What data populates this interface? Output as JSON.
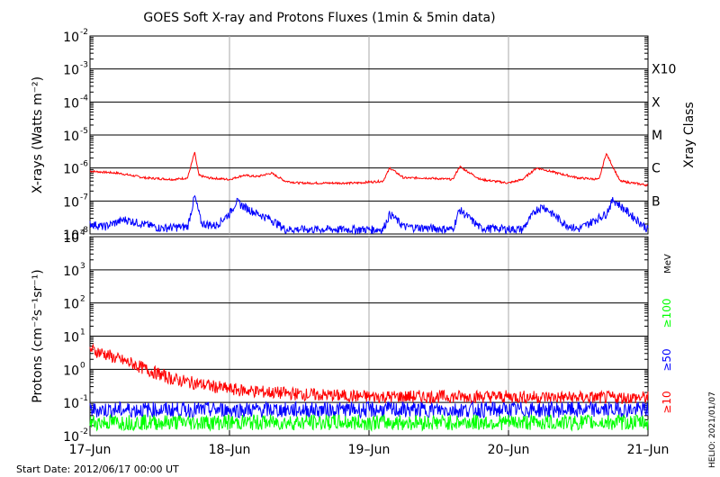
{
  "title": "GOES Soft X-ray and Protons Fluxes   (1min & 5min data)",
  "start_date": "Start Date: 2012/06/17 00:00 UT",
  "credit": "HELIO: 2021/01/07",
  "chart_data": [
    {
      "type": "line",
      "panel": "xray",
      "ylabel": "X-rays (Watts m⁻²)",
      "yscale": "log",
      "ylim": [
        1e-08,
        0.01
      ],
      "yticks": [
        {
          "exp": -2,
          "label": "10",
          "sup": "-2"
        },
        {
          "exp": -3,
          "label": "10",
          "sup": "-3"
        },
        {
          "exp": -4,
          "label": "10",
          "sup": "-4"
        },
        {
          "exp": -5,
          "label": "10",
          "sup": "-5"
        },
        {
          "exp": -6,
          "label": "10",
          "sup": "-6"
        },
        {
          "exp": -7,
          "label": "10",
          "sup": "-7"
        },
        {
          "exp": -8,
          "label": "10",
          "sup": "-8"
        }
      ],
      "right_axis_title": "Xray Class",
      "class_labels": [
        {
          "exp": -3,
          "label": "X10"
        },
        {
          "exp": -4,
          "label": "X"
        },
        {
          "exp": -5,
          "label": "M"
        },
        {
          "exp": -6,
          "label": "C"
        },
        {
          "exp": -7,
          "label": "B"
        }
      ],
      "series": [
        {
          "color": "#ff0000",
          "x_days": [
            0.0,
            0.2,
            0.4,
            0.6,
            0.7,
            0.75,
            0.78,
            0.85,
            1.0,
            1.1,
            1.2,
            1.3,
            1.4,
            1.5,
            1.7,
            1.9,
            2.1,
            2.15,
            2.25,
            2.4,
            2.6,
            2.65,
            2.8,
            3.0,
            3.1,
            3.2,
            3.25,
            3.35,
            3.5,
            3.65,
            3.7,
            3.8,
            4.0
          ],
          "values": [
            8e-07,
            7e-07,
            5e-07,
            4.5e-07,
            5e-07,
            3e-06,
            6e-07,
            5e-07,
            4.5e-07,
            6e-07,
            5.5e-07,
            7e-07,
            4e-07,
            3.5e-07,
            3.5e-07,
            3.5e-07,
            4e-07,
            1e-06,
            5e-07,
            5e-07,
            4.5e-07,
            1.1e-06,
            4.5e-07,
            3.5e-07,
            4.5e-07,
            1e-06,
            9e-07,
            7e-07,
            5e-07,
            4.5e-07,
            2.8e-06,
            4e-07,
            3e-07
          ]
        },
        {
          "color": "#0000ff",
          "x_days": [
            0.0,
            0.1,
            0.25,
            0.5,
            0.7,
            0.75,
            0.8,
            0.9,
            1.0,
            1.05,
            1.1,
            1.2,
            1.3,
            1.4,
            1.7,
            2.1,
            2.15,
            2.25,
            2.6,
            2.65,
            2.8,
            3.1,
            3.2,
            3.25,
            3.4,
            3.5,
            3.7,
            3.75,
            4.0
          ],
          "values": [
            1.5e-08,
            1.2e-08,
            2e-08,
            1.1e-08,
            1.2e-08,
            1e-07,
            1.5e-08,
            1.3e-08,
            3e-08,
            7e-08,
            5e-08,
            3e-08,
            2e-08,
            1e-08,
            1e-08,
            1e-08,
            3e-08,
            1.2e-08,
            1e-08,
            4e-08,
            1.1e-08,
            1e-08,
            4e-08,
            5e-08,
            1.5e-08,
            1e-08,
            3e-08,
            8e-08,
            1e-08
          ]
        }
      ]
    },
    {
      "type": "line",
      "panel": "protons",
      "ylabel": "Protons (cm⁻²s⁻¹sr⁻¹)",
      "yscale": "log",
      "ylim": [
        0.01,
        10000
      ],
      "yticks": [
        {
          "exp": 4,
          "label": "10",
          "sup": "4"
        },
        {
          "exp": 3,
          "label": "10",
          "sup": "3"
        },
        {
          "exp": 2,
          "label": "10",
          "sup": "2"
        },
        {
          "exp": 1,
          "label": "10",
          "sup": "1"
        },
        {
          "exp": 0,
          "label": "10",
          "sup": "0"
        },
        {
          "exp": -1,
          "label": "10",
          "sup": "-1"
        },
        {
          "exp": -2,
          "label": "10",
          "sup": "-2"
        }
      ],
      "threshold": 10,
      "units_label": "MeV",
      "energy_labels": [
        {
          "label": "≥100",
          "color": "#00ff00"
        },
        {
          "label": "≥50",
          "color": "#0000ff"
        },
        {
          "label": "≥10",
          "color": "#ff0000"
        }
      ],
      "series": [
        {
          "name": "≥10",
          "color": "#ff0000",
          "x_days": [
            0.0,
            0.1,
            0.2,
            0.3,
            0.4,
            0.5,
            0.6,
            0.8,
            1.0,
            1.3,
            1.6,
            2.0,
            2.5,
            3.0,
            3.5,
            4.0
          ],
          "values": [
            4.0,
            3.0,
            2.0,
            1.5,
            1.0,
            0.7,
            0.5,
            0.35,
            0.25,
            0.2,
            0.17,
            0.15,
            0.15,
            0.15,
            0.14,
            0.14
          ]
        },
        {
          "name": "≥50",
          "color": "#0000ff",
          "x_days": [
            0.0,
            0.5,
            1.0,
            1.5,
            2.0,
            2.5,
            3.0,
            3.5,
            4.0
          ],
          "values": [
            0.06,
            0.06,
            0.06,
            0.06,
            0.06,
            0.06,
            0.06,
            0.06,
            0.06
          ]
        },
        {
          "name": "≥100",
          "color": "#00ff00",
          "x_days": [
            0.0,
            0.5,
            1.0,
            1.5,
            2.0,
            2.5,
            3.0,
            3.5,
            4.0
          ],
          "values": [
            0.025,
            0.025,
            0.025,
            0.025,
            0.025,
            0.025,
            0.025,
            0.025,
            0.025
          ]
        }
      ]
    }
  ],
  "x_ticks": [
    "17–Jun",
    "18–Jun",
    "19–Jun",
    "20–Jun",
    "21–Jun"
  ]
}
